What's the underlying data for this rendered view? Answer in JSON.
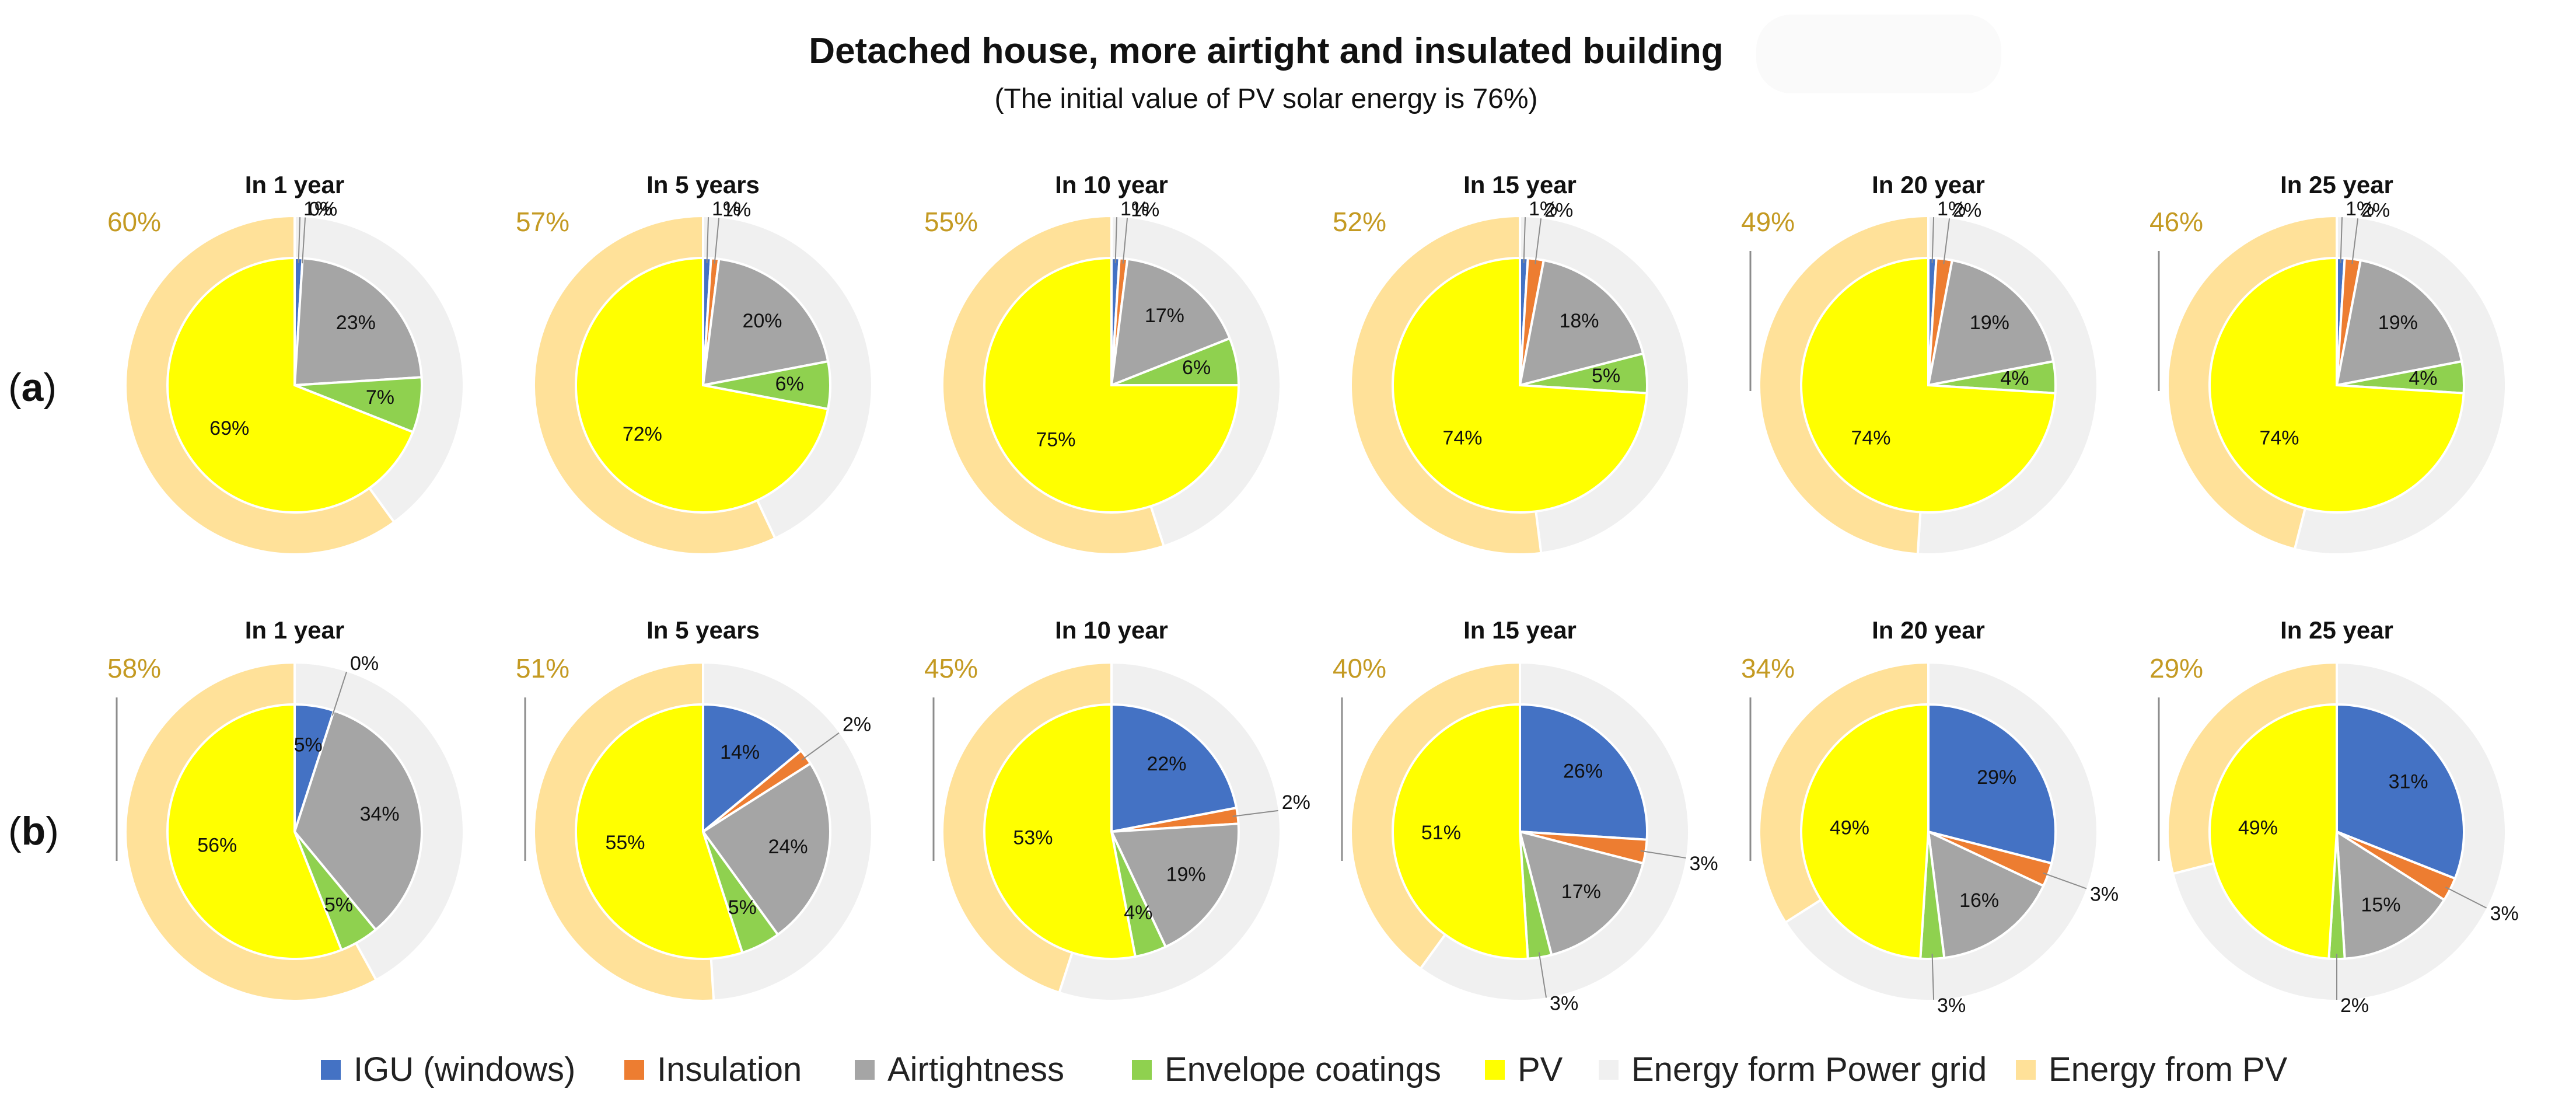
{
  "title": "Detached house, more airtight and insulated building",
  "subtitle": "(The initial value of PV solar energy is 76%)",
  "row_labels": {
    "a": {
      "open": "(",
      "letter": "a",
      "close": ")"
    },
    "b": {
      "open": "(",
      "letter": "b",
      "close": ")"
    }
  },
  "legend": [
    {
      "label": "IGU (windows)",
      "color": "#4472C4"
    },
    {
      "label": "Insulation",
      "color": "#ED7D31"
    },
    {
      "label": "Airtightness",
      "color": "#A5A5A5"
    },
    {
      "label": "Envelope coatings",
      "color": "#8FD14F"
    },
    {
      "label": "PV",
      "color": "#FFFF00"
    },
    {
      "label": "Energy form Power grid",
      "color": "#F0F0F0"
    },
    {
      "label": "Energy from PV",
      "color": "#FFE199"
    }
  ],
  "colors": {
    "igu": "#4472C4",
    "insulation": "#ED7D31",
    "airtightness": "#A5A5A5",
    "coatings": "#8FD14F",
    "pv": "#FFFF00",
    "grid": "#F0F0F0",
    "energy_pv": "#FFE199",
    "outer_label": "#C49A22"
  },
  "chart_data": [
    {
      "type": "pie",
      "row": "a",
      "title": "In 1 year",
      "outer": {
        "energy_from_pv": 60,
        "energy_from_grid": 40,
        "label": "60%"
      },
      "inner": {
        "categories": [
          "IGU (windows)",
          "Insulation",
          "Airtightness",
          "Envelope coatings",
          "PV"
        ],
        "values": [
          1,
          0,
          23,
          7,
          69
        ],
        "labels": [
          "1%",
          "0%",
          "23%",
          "7%",
          "69%"
        ]
      }
    },
    {
      "type": "pie",
      "row": "a",
      "title": "In 5 years",
      "outer": {
        "energy_from_pv": 57,
        "energy_from_grid": 43,
        "label": "57%"
      },
      "inner": {
        "categories": [
          "IGU (windows)",
          "Insulation",
          "Airtightness",
          "Envelope coatings",
          "PV"
        ],
        "values": [
          1,
          1,
          20,
          6,
          72
        ],
        "labels": [
          "1%",
          "1%",
          "20%",
          "6%",
          "72%"
        ]
      }
    },
    {
      "type": "pie",
      "row": "a",
      "title": "In 10 year",
      "outer": {
        "energy_from_pv": 55,
        "energy_from_grid": 45,
        "label": "55%"
      },
      "inner": {
        "categories": [
          "IGU (windows)",
          "Insulation",
          "Airtightness",
          "Envelope coatings",
          "PV"
        ],
        "values": [
          1,
          1,
          17,
          6,
          75
        ],
        "labels": [
          "1%",
          "1%",
          "17%",
          "6%",
          "75%"
        ]
      }
    },
    {
      "type": "pie",
      "row": "a",
      "title": "In 15 year",
      "outer": {
        "energy_from_pv": 52,
        "energy_from_grid": 48,
        "label": "52%"
      },
      "inner": {
        "categories": [
          "IGU (windows)",
          "Insulation",
          "Airtightness",
          "Envelope coatings",
          "PV"
        ],
        "values": [
          1,
          2,
          18,
          5,
          74
        ],
        "labels": [
          "1%",
          "2%",
          "18%",
          "5%",
          "74%"
        ]
      }
    },
    {
      "type": "pie",
      "row": "a",
      "title": "In 20 year",
      "outer": {
        "energy_from_pv": 49,
        "energy_from_grid": 51,
        "label": "49%"
      },
      "inner": {
        "categories": [
          "IGU (windows)",
          "Insulation",
          "Airtightness",
          "Envelope coatings",
          "PV"
        ],
        "values": [
          1,
          2,
          19,
          4,
          74
        ],
        "labels": [
          "1%",
          "2%",
          "19%",
          "4%",
          "74%"
        ]
      }
    },
    {
      "type": "pie",
      "row": "a",
      "title": "In 25 year",
      "outer": {
        "energy_from_pv": 46,
        "energy_from_grid": 54,
        "label": "46%"
      },
      "inner": {
        "categories": [
          "IGU (windows)",
          "Insulation",
          "Airtightness",
          "Envelope coatings",
          "PV"
        ],
        "values": [
          1,
          2,
          19,
          4,
          74
        ],
        "labels": [
          "1%",
          "2%",
          "19%",
          "4%",
          "74%"
        ]
      }
    },
    {
      "type": "pie",
      "row": "b",
      "title": "In 1 year",
      "outer": {
        "energy_from_pv": 58,
        "energy_from_grid": 42,
        "label": "58%"
      },
      "inner": {
        "categories": [
          "IGU (windows)",
          "Insulation",
          "Airtightness",
          "Envelope coatings",
          "PV"
        ],
        "values": [
          5,
          0,
          34,
          5,
          56
        ],
        "labels": [
          "5%",
          "0%",
          "34%",
          "5%",
          "56%"
        ]
      }
    },
    {
      "type": "pie",
      "row": "b",
      "title": "In 5 years",
      "outer": {
        "energy_from_pv": 51,
        "energy_from_grid": 49,
        "label": "51%"
      },
      "inner": {
        "categories": [
          "IGU (windows)",
          "Insulation",
          "Airtightness",
          "Envelope coatings",
          "PV"
        ],
        "values": [
          14,
          2,
          24,
          5,
          55
        ],
        "labels": [
          "14%",
          "2%",
          "24%",
          "5%",
          "55%"
        ]
      }
    },
    {
      "type": "pie",
      "row": "b",
      "title": "In 10 year",
      "outer": {
        "energy_from_pv": 45,
        "energy_from_grid": 55,
        "label": "45%"
      },
      "inner": {
        "categories": [
          "IGU (windows)",
          "Insulation",
          "Airtightness",
          "Envelope coatings",
          "PV"
        ],
        "values": [
          22,
          2,
          19,
          4,
          53
        ],
        "labels": [
          "22%",
          "2%",
          "19%",
          "4%",
          "53%"
        ]
      }
    },
    {
      "type": "pie",
      "row": "b",
      "title": "In 15 year",
      "outer": {
        "energy_from_pv": 40,
        "energy_from_grid": 60,
        "label": "40%"
      },
      "inner": {
        "categories": [
          "IGU (windows)",
          "Insulation",
          "Airtightness",
          "Envelope coatings",
          "PV"
        ],
        "values": [
          26,
          3,
          17,
          3,
          51
        ],
        "labels": [
          "26%",
          "3%",
          "17%",
          "3%",
          "51%"
        ]
      }
    },
    {
      "type": "pie",
      "row": "b",
      "title": "In 20 year",
      "outer": {
        "energy_from_pv": 34,
        "energy_from_grid": 66,
        "label": "34%"
      },
      "inner": {
        "categories": [
          "IGU (windows)",
          "Insulation",
          "Airtightness",
          "Envelope coatings",
          "PV"
        ],
        "values": [
          29,
          3,
          16,
          3,
          49
        ],
        "labels": [
          "29%",
          "3%",
          "16%",
          "3%",
          "49%"
        ]
      }
    },
    {
      "type": "pie",
      "row": "b",
      "title": "In 25 year",
      "outer": {
        "energy_from_pv": 29,
        "energy_from_grid": 71,
        "label": "29%"
      },
      "inner": {
        "categories": [
          "IGU (windows)",
          "Insulation",
          "Airtightness",
          "Envelope coatings",
          "PV"
        ],
        "values": [
          31,
          3,
          15,
          2,
          49
        ],
        "labels": [
          "31%",
          "3%",
          "15%",
          "2%",
          "49%"
        ]
      }
    }
  ]
}
